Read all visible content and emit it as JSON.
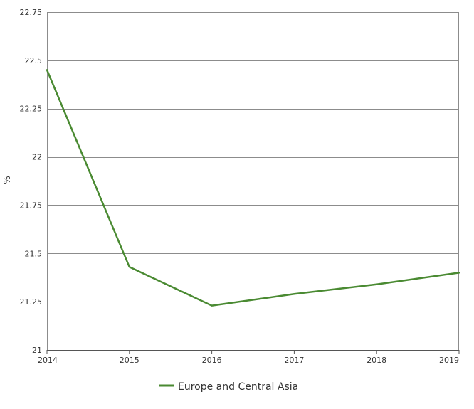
{
  "chart_data": {
    "type": "line",
    "title": "",
    "xlabel": "",
    "ylabel": "%",
    "categories": [
      "2014",
      "2015",
      "2016",
      "2017",
      "2018",
      "2019"
    ],
    "x": [
      2014,
      2015,
      2016,
      2017,
      2018,
      2019
    ],
    "ylim": [
      21,
      22.75
    ],
    "yticks": [
      21,
      21.25,
      21.5,
      21.75,
      22,
      22.25,
      22.5,
      22.75
    ],
    "ytick_labels": [
      "21",
      "21.25",
      "21.5",
      "21.75",
      "22",
      "22.25",
      "22.5",
      "22.75"
    ],
    "grid": true,
    "legend_position": "bottom-left",
    "series": [
      {
        "name": "Europe and Central Asia",
        "color": "#4a8a32",
        "values": [
          22.45,
          21.43,
          21.23,
          21.29,
          21.34,
          21.4
        ]
      }
    ]
  }
}
